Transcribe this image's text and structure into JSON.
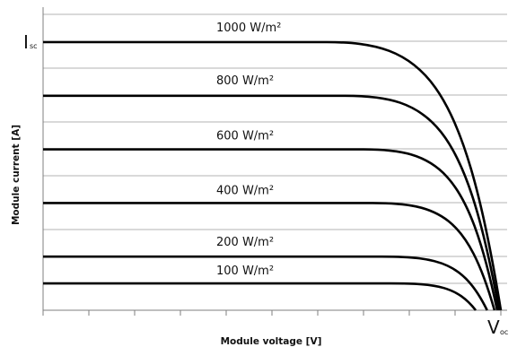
{
  "chart_data": {
    "type": "line",
    "xlabel": "Module voltage [V]",
    "ylabel": "Module current [A]",
    "isc_label": {
      "main": "I",
      "sub": "sc"
    },
    "voc_label": {
      "main": "V",
      "sub": "oc"
    },
    "grid": "horizontal",
    "series": [
      {
        "name": "1000 W/m²",
        "current": 100,
        "knee_voltage": 62,
        "voc": 100
      },
      {
        "name": "800 W/m²",
        "current": 80,
        "knee_voltage": 66,
        "voc": 99.6
      },
      {
        "name": "600 W/m²",
        "current": 60,
        "knee_voltage": 70,
        "voc": 99.2
      },
      {
        "name": "400 W/m²",
        "current": 40,
        "knee_voltage": 72,
        "voc": 98.6
      },
      {
        "name": "200 W/m²",
        "current": 20,
        "knee_voltage": 74,
        "voc": 97
      },
      {
        "name": "100 W/m²",
        "current": 10,
        "knee_voltage": 76,
        "voc": 94.5
      }
    ]
  }
}
